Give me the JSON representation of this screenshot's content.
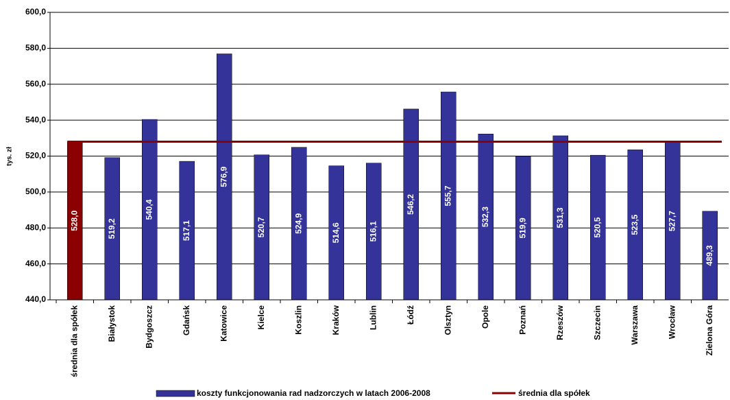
{
  "chart_data": {
    "type": "bar",
    "y_label": "tys. zł",
    "categories": [
      "średnia dla spółek",
      "Białystok",
      "Bydgoszcz",
      "Gdańsk",
      "Katowice",
      "Kielce",
      "Koszlin",
      "Kraków",
      "Lublin",
      "Łódź",
      "Olsztyn",
      "Opole",
      "Poznań",
      "Rzeszów",
      "Szczecin",
      "Warszawa",
      "Wrocław",
      "Zielona Góra"
    ],
    "series": [
      {
        "name": "koszty funkcjonowania rad nadzorczych w latach 2006-2008",
        "color": "#333399",
        "colors": [
          "#8b0000",
          "#333399",
          "#333399",
          "#333399",
          "#333399",
          "#333399",
          "#333399",
          "#333399",
          "#333399",
          "#333399",
          "#333399",
          "#333399",
          "#333399",
          "#333399",
          "#333399",
          "#333399",
          "#333399",
          "#333399"
        ],
        "values": [
          528.0,
          519.2,
          540.4,
          517.1,
          576.9,
          520.7,
          524.9,
          514.6,
          516.1,
          546.2,
          555.7,
          532.3,
          519.9,
          531.3,
          520.5,
          523.5,
          527.7,
          489.3
        ],
        "value_labels": [
          "528,0",
          "519,2",
          "540,4",
          "517,1",
          "576,9",
          "520,7",
          "524,9",
          "514,6",
          "516,1",
          "546,2",
          "555,7",
          "532,3",
          "519,9",
          "531,3",
          "520,5",
          "523,5",
          "527,7",
          "489,3"
        ]
      },
      {
        "name": "średnia dla spółek",
        "type": "line",
        "color": "#8b0000",
        "values": [
          528.0,
          528.0,
          528.0,
          528.0,
          528.0,
          528.0,
          528.0,
          528.0,
          528.0,
          528.0,
          528.0,
          528.0,
          528.0,
          528.0,
          528.0,
          528.0,
          528.0,
          528.0
        ]
      }
    ],
    "ylim": [
      440,
      600
    ],
    "yticks": [
      {
        "value": 440,
        "label": "440,0"
      },
      {
        "value": 460,
        "label": "460,0"
      },
      {
        "value": 480,
        "label": "480,0"
      },
      {
        "value": 500,
        "label": "500,0"
      },
      {
        "value": 520,
        "label": "520,0"
      },
      {
        "value": 540,
        "label": "540,0"
      },
      {
        "value": 560,
        "label": "560,0"
      },
      {
        "value": 580,
        "label": "580,0"
      },
      {
        "value": 600,
        "label": "600,0"
      }
    ],
    "grid": true
  }
}
